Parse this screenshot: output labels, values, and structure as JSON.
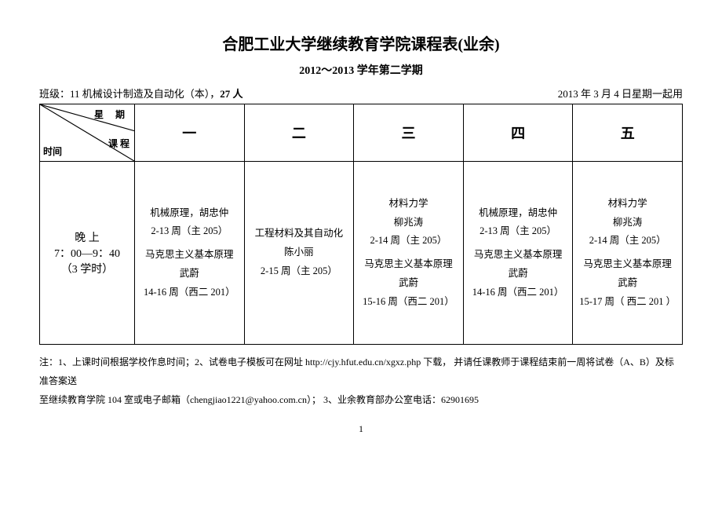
{
  "title": "合肥工业大学继续教育学院课程表(业余)",
  "subtitle": "2012～2013 学年第二学期",
  "class_info_prefix": "班级：11 机械设计制造及自动化（本），",
  "class_info_count": "27 人",
  "effective_date": "2013 年 3 月 4 日星期一起用",
  "header": {
    "time_label": "时间",
    "course_label": "课  程",
    "week_label": "星  期",
    "days": [
      "一",
      "二",
      "三",
      "四",
      "五"
    ]
  },
  "time_slot": {
    "label": "晚    上",
    "range": "7：00—9：40",
    "periods": "（3 学时）"
  },
  "cells": [
    [
      {
        "lines": [
          "机械原理，胡忠仲",
          "2-13 周（主 205）"
        ]
      },
      {
        "lines": [
          "马克思主义基本原理",
          "武蔚",
          "14-16 周（西二 201）"
        ]
      }
    ],
    [
      {
        "lines": [
          "工程材料及其自动化",
          "陈小丽",
          "2-15 周（主 205）"
        ]
      }
    ],
    [
      {
        "lines": [
          "材料力学",
          "柳兆涛",
          "2-14 周（主 205）"
        ]
      },
      {
        "lines": [
          "马克思主义基本原理",
          "武蔚",
          "15-16 周（西二 201）"
        ]
      }
    ],
    [
      {
        "lines": [
          "机械原理，胡忠仲",
          "2-13 周（主 205）"
        ]
      },
      {
        "lines": [
          "马克思主义基本原理",
          "武蔚",
          "14-16 周（西二 201）"
        ]
      }
    ],
    [
      {
        "lines": [
          "材料力学",
          "柳兆涛",
          "2-14 周（主 205）"
        ]
      },
      {
        "lines": [
          "马克思主义基本原理",
          "武蔚",
          "15-17 周（ 西二 201 ）"
        ]
      }
    ]
  ],
  "footer": {
    "note_prefix": "注：1、上课时间根据学校作息时间；2、试卷电子模板可在网址 ",
    "url": "http://cjy.hfut.edu.cn/xgxz.php",
    "note_mid": " 下载，  并请任课教师于课程结束前一周将试卷（A、B）及标准答案送",
    "note_line2_prefix": "至继续教育学院 104 室或电子邮箱（chengjiao1221@yahoo.com.cn）； 3、业余教育部办公室电话：",
    "phone": "62901695"
  },
  "page_number": "1"
}
